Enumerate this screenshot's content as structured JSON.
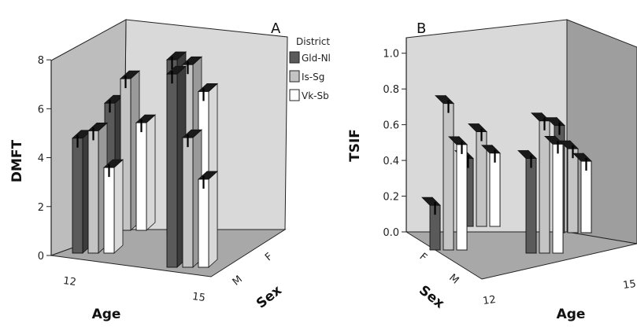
{
  "chart_data": [
    {
      "type": "bar",
      "style": "3d-clustered",
      "panel_label": "A",
      "ylabel": "DMFT",
      "xlabel": "Age",
      "zlabel": "Sex",
      "ylim": [
        0,
        9
      ],
      "yticks": [
        "0",
        "2",
        "4",
        "6",
        "8"
      ],
      "age_categories": [
        "12",
        "15"
      ],
      "sex_categories": [
        "F",
        "M"
      ],
      "legend": {
        "title": "District",
        "placement": "top-right",
        "entries": [
          {
            "name": "Gld-Nl",
            "color": "#5a5a5a"
          },
          {
            "name": "Is-Sg",
            "color": "#c4c4c4"
          },
          {
            "name": "Vk-Sb",
            "color": "#ffffff"
          }
        ]
      },
      "series": [
        {
          "name": "Gld-Nl",
          "values": {
            "12-F": 5.2,
            "12-M": 4.7,
            "15-F": 7.2,
            "15-M": 7.9
          }
        },
        {
          "name": "Is-Sg",
          "values": {
            "12-F": 6.2,
            "12-M": 5.0,
            "15-F": 7.0,
            "15-M": 5.3
          }
        },
        {
          "name": "Vk-Sb",
          "values": {
            "12-F": 4.4,
            "12-M": 3.5,
            "15-F": 5.9,
            "15-M": 3.6
          }
        }
      ]
    },
    {
      "type": "bar",
      "style": "3d-clustered",
      "panel_label": "B",
      "ylabel": "TSIF",
      "xlabel": "Age",
      "zlabel": "Sex",
      "ylim": [
        0,
        1.1
      ],
      "yticks": [
        "0.0",
        "0.2",
        "0.4",
        "0.6",
        "0.8",
        "1.0"
      ],
      "age_categories": [
        "12",
        "15"
      ],
      "sex_categories": [
        "F",
        "M"
      ],
      "series": [
        {
          "name": "Gld-Nl",
          "values": {
            "12-F": 0.38,
            "12-M": 0.25,
            "15-F": 0.6,
            "15-M": 0.53
          }
        },
        {
          "name": "Is-Sg",
          "values": {
            "12-F": 0.53,
            "12-M": 0.82,
            "15-F": 0.47,
            "15-M": 0.74
          }
        },
        {
          "name": "Vk-Sb",
          "values": {
            "12-F": 0.41,
            "12-M": 0.59,
            "15-F": 0.4,
            "15-M": 0.61
          }
        }
      ]
    }
  ],
  "labels": {
    "age_12": "12",
    "age_15_a": "15",
    "age_15_b": "15",
    "sex_f": "F",
    "sex_m": "M"
  }
}
